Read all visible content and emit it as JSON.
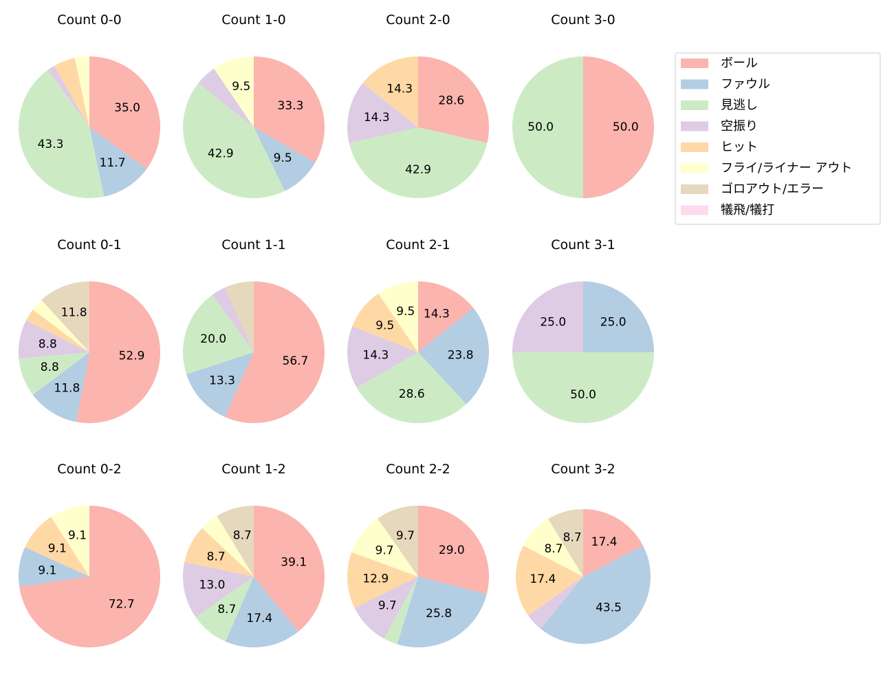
{
  "chart_data": {
    "type": "pie",
    "categories": [
      "ボール",
      "ファウル",
      "見逃し",
      "空振り",
      "ヒット",
      "フライ/ライナー アウト",
      "ゴロアウト/エラー",
      "犠飛/犠打"
    ],
    "colors": [
      "#fbb4ae",
      "#b3cde3",
      "#ccebc5",
      "#decbe4",
      "#fed9a6",
      "#ffffcc",
      "#e5d8bd",
      "#fddaec"
    ],
    "legend": "top-right",
    "charts": [
      {
        "title": "Count 0-0",
        "values": [
          35.0,
          11.7,
          43.3,
          1.7,
          5.0,
          3.3,
          0,
          0
        ]
      },
      {
        "title": "Count 1-0",
        "values": [
          33.3,
          9.5,
          42.9,
          4.8,
          0,
          9.5,
          0,
          0
        ]
      },
      {
        "title": "Count 2-0",
        "values": [
          28.6,
          0,
          42.9,
          14.3,
          14.3,
          0,
          0,
          0
        ]
      },
      {
        "title": "Count 3-0",
        "values": [
          50.0,
          0,
          50.0,
          0,
          0,
          0,
          0,
          0
        ]
      },
      {
        "title": "Count 0-1",
        "values": [
          52.9,
          11.8,
          8.8,
          8.8,
          2.9,
          2.9,
          11.8,
          0
        ]
      },
      {
        "title": "Count 1-1",
        "values": [
          56.7,
          13.3,
          20.0,
          3.3,
          0,
          0,
          6.7,
          0
        ]
      },
      {
        "title": "Count 2-1",
        "values": [
          14.3,
          23.8,
          28.6,
          14.3,
          9.5,
          9.5,
          0,
          0
        ]
      },
      {
        "title": "Count 3-1",
        "values": [
          0,
          25.0,
          50.0,
          25.0,
          0,
          0,
          0,
          0
        ]
      },
      {
        "title": "Count 0-2",
        "values": [
          72.7,
          9.1,
          0,
          0,
          9.1,
          9.1,
          0,
          0
        ]
      },
      {
        "title": "Count 1-2",
        "values": [
          39.1,
          17.4,
          8.7,
          13.0,
          8.7,
          4.3,
          8.7,
          0
        ]
      },
      {
        "title": "Count 2-2",
        "values": [
          29.0,
          25.8,
          3.2,
          9.7,
          12.9,
          9.7,
          9.7,
          0
        ]
      },
      {
        "title": "Count 3-2",
        "values": [
          17.4,
          43.5,
          0,
          4.3,
          17.4,
          8.7,
          8.7,
          0
        ]
      }
    ]
  }
}
